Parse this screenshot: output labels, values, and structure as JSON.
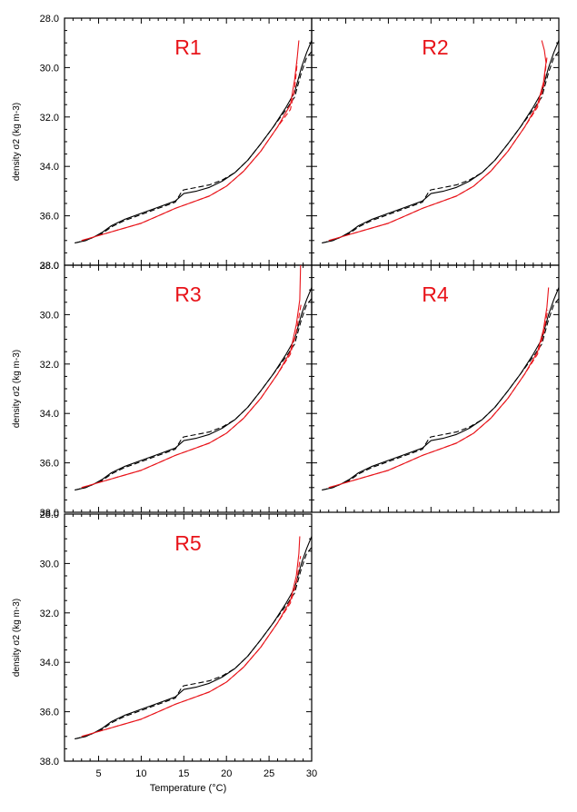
{
  "chart_data": {
    "type": "line",
    "layout": "3x2 panel grid, 5 panels",
    "xlabel": "Temperature (°C)",
    "ylabel": "density σ2 (kg m-3)",
    "xlim": [
      1,
      30
    ],
    "ylim": [
      38.0,
      28.0
    ],
    "y_inverted": true,
    "x_ticks": [
      5,
      10,
      15,
      20,
      25,
      30
    ],
    "x_tick_labels": [
      "5",
      "10",
      "15",
      "20",
      "25",
      "30"
    ],
    "y_ticks": [
      28,
      30,
      32,
      34,
      36,
      38
    ],
    "y_tick_labels": [
      "28.0",
      "30.0",
      "32.0",
      "34.0",
      "36.0",
      "38.0"
    ],
    "grid": false,
    "colors": {
      "reference": "#000000",
      "model": "#e8141a",
      "title": "#e8141a"
    },
    "panels": [
      {
        "title": "R1",
        "series": [
          {
            "color": "#000000",
            "dash": false,
            "x": [
              2.2,
              3.5,
              4.5,
              5.5,
              6.5,
              8,
              10,
              12,
              14,
              15,
              16.5,
              18,
              19.5,
              21,
              22.5,
              24,
              25.5,
              27,
              28,
              28.8,
              29.4,
              30
            ],
            "y": [
              37.1,
              37.0,
              36.85,
              36.65,
              36.4,
              36.15,
              35.9,
              35.65,
              35.4,
              35.1,
              35.0,
              34.85,
              34.6,
              34.25,
              33.75,
              33.1,
              32.4,
              31.6,
              31.0,
              30.0,
              29.4,
              28.9
            ]
          },
          {
            "color": "#000000",
            "dash": true,
            "x": [
              2.2,
              3.5,
              4.5,
              5.5,
              6.5,
              8,
              10,
              12,
              14,
              14.8,
              15,
              16.5,
              18,
              19.5,
              21,
              22.5,
              24,
              25.5,
              27,
              28,
              28.8,
              29.4,
              30
            ],
            "y": [
              37.1,
              37.0,
              36.85,
              36.7,
              36.45,
              36.2,
              35.95,
              35.7,
              35.45,
              35.0,
              34.95,
              34.85,
              34.75,
              34.55,
              34.25,
              33.75,
              33.1,
              32.4,
              31.7,
              31.2,
              30.2,
              29.6,
              29.35
            ]
          },
          {
            "color": "#e8141a",
            "dash": false,
            "x": [
              3,
              4,
              6,
              8,
              10,
              12,
              14,
              16,
              18,
              20,
              22,
              24,
              26,
              27.5,
              28,
              28.3,
              28.5
            ],
            "y": [
              37.0,
              36.9,
              36.7,
              36.5,
              36.3,
              36.0,
              35.7,
              35.45,
              35.2,
              34.8,
              34.2,
              33.4,
              32.4,
              31.5,
              30.5,
              29.6,
              28.9
            ]
          },
          {
            "color": "#e8141a",
            "dash": true,
            "x": [
              3,
              4,
              6,
              8,
              10,
              12,
              14,
              16,
              18,
              20,
              22,
              24,
              26,
              27.5,
              28,
              28.3
            ],
            "y": [
              37.0,
              36.9,
              36.7,
              36.5,
              36.3,
              36.0,
              35.7,
              35.45,
              35.2,
              34.8,
              34.2,
              33.4,
              32.4,
              31.7,
              30.9,
              29.8
            ]
          }
        ]
      },
      {
        "title": "R2",
        "series": [
          {
            "color": "#000000",
            "dash": false,
            "x": [
              2.2,
              3.5,
              4.5,
              5.5,
              6.5,
              8,
              10,
              12,
              14,
              15,
              16.5,
              18,
              19.5,
              21,
              22.5,
              24,
              25.5,
              27,
              28,
              28.8,
              29.4,
              30
            ],
            "y": [
              37.1,
              37.0,
              36.85,
              36.65,
              36.4,
              36.15,
              35.9,
              35.65,
              35.4,
              35.1,
              35.0,
              34.85,
              34.6,
              34.25,
              33.75,
              33.1,
              32.4,
              31.6,
              31.0,
              30.0,
              29.4,
              28.9
            ]
          },
          {
            "color": "#000000",
            "dash": true,
            "x": [
              2.2,
              3.5,
              4.5,
              5.5,
              6.5,
              8,
              10,
              12,
              14,
              14.8,
              15,
              16.5,
              18,
              19.5,
              21,
              22.5,
              24,
              25.5,
              27,
              28,
              28.8,
              29.4,
              30
            ],
            "y": [
              37.1,
              37.0,
              36.85,
              36.7,
              36.45,
              36.2,
              35.95,
              35.7,
              35.45,
              35.0,
              34.95,
              34.85,
              34.75,
              34.55,
              34.25,
              33.75,
              33.1,
              32.4,
              31.7,
              31.2,
              30.2,
              29.6,
              29.35
            ]
          },
          {
            "color": "#e8141a",
            "dash": false,
            "x": [
              3,
              4,
              6,
              8,
              10,
              12,
              14,
              16,
              18,
              20,
              22,
              24,
              26,
              27.5,
              28.2,
              28.5,
              28.3,
              28.0
            ],
            "y": [
              37.0,
              36.9,
              36.7,
              36.5,
              36.3,
              36.0,
              35.7,
              35.45,
              35.2,
              34.8,
              34.2,
              33.4,
              32.4,
              31.5,
              30.6,
              29.8,
              29.3,
              28.9
            ]
          },
          {
            "color": "#e8141a",
            "dash": true,
            "x": [
              3,
              4,
              6,
              8,
              10,
              12,
              14,
              16,
              18,
              20,
              22,
              24,
              26,
              27.5,
              28.2,
              28.6
            ],
            "y": [
              37.0,
              36.9,
              36.7,
              36.5,
              36.3,
              36.0,
              35.7,
              35.45,
              35.2,
              34.8,
              34.2,
              33.4,
              32.4,
              31.6,
              30.8,
              29.6
            ]
          }
        ]
      },
      {
        "title": "R3",
        "series": [
          {
            "color": "#000000",
            "dash": false,
            "x": [
              2.2,
              3.5,
              4.5,
              5.5,
              6.5,
              8,
              10,
              12,
              14,
              15,
              16.5,
              18,
              19.5,
              21,
              22.5,
              24,
              25.5,
              27,
              28,
              28.8,
              29.4,
              30
            ],
            "y": [
              37.1,
              37.0,
              36.85,
              36.65,
              36.4,
              36.15,
              35.9,
              35.65,
              35.4,
              35.1,
              35.0,
              34.85,
              34.6,
              34.25,
              33.75,
              33.1,
              32.4,
              31.6,
              31.0,
              30.0,
              29.4,
              28.9
            ]
          },
          {
            "color": "#000000",
            "dash": true,
            "x": [
              2.2,
              3.5,
              4.5,
              5.5,
              6.5,
              8,
              10,
              12,
              14,
              14.8,
              15,
              16.5,
              18,
              19.5,
              21,
              22.5,
              24,
              25.5,
              27,
              28,
              28.8,
              29.4,
              30
            ],
            "y": [
              37.1,
              37.0,
              36.85,
              36.7,
              36.45,
              36.2,
              35.95,
              35.7,
              35.45,
              35.0,
              34.95,
              34.85,
              34.75,
              34.55,
              34.25,
              33.75,
              33.1,
              32.4,
              31.7,
              31.2,
              30.2,
              29.6,
              29.35
            ]
          },
          {
            "color": "#e8141a",
            "dash": false,
            "x": [
              3,
              4,
              6,
              8,
              10,
              12,
              14,
              16,
              18,
              20,
              22,
              24,
              26,
              27.5,
              28.2,
              28.6,
              28.7
            ],
            "y": [
              37.0,
              36.9,
              36.7,
              36.5,
              36.3,
              36.0,
              35.7,
              35.45,
              35.2,
              34.8,
              34.2,
              33.4,
              32.4,
              31.5,
              30.4,
              29.4,
              28.0
            ]
          },
          {
            "color": "#e8141a",
            "dash": true,
            "x": [
              3,
              4,
              6,
              8,
              10,
              12,
              14,
              16,
              18,
              20,
              22,
              24,
              26,
              27.5,
              28.2,
              28.8
            ],
            "y": [
              37.0,
              36.9,
              36.7,
              36.5,
              36.3,
              36.0,
              35.7,
              35.45,
              35.2,
              34.8,
              34.2,
              33.4,
              32.4,
              31.6,
              30.7,
              29.5
            ]
          }
        ]
      },
      {
        "title": "R4",
        "series": [
          {
            "color": "#000000",
            "dash": false,
            "x": [
              2.2,
              3.5,
              4.5,
              5.5,
              6.5,
              8,
              10,
              12,
              14,
              15,
              16.5,
              18,
              19.5,
              21,
              22.5,
              24,
              25.5,
              27,
              28,
              28.8,
              29.4,
              30
            ],
            "y": [
              37.1,
              37.0,
              36.85,
              36.65,
              36.4,
              36.15,
              35.9,
              35.65,
              35.4,
              35.1,
              35.0,
              34.85,
              34.6,
              34.25,
              33.75,
              33.1,
              32.4,
              31.6,
              31.0,
              30.0,
              29.4,
              28.9
            ]
          },
          {
            "color": "#000000",
            "dash": true,
            "x": [
              2.2,
              3.5,
              4.5,
              5.5,
              6.5,
              8,
              10,
              12,
              14,
              14.8,
              15,
              16.5,
              18,
              19.5,
              21,
              22.5,
              24,
              25.5,
              27,
              28,
              28.8,
              29.4,
              30
            ],
            "y": [
              37.1,
              37.0,
              36.85,
              36.7,
              36.45,
              36.2,
              35.95,
              35.7,
              35.45,
              35.0,
              34.95,
              34.85,
              34.75,
              34.55,
              34.25,
              33.75,
              33.1,
              32.4,
              31.7,
              31.2,
              30.2,
              29.6,
              29.35
            ]
          },
          {
            "color": "#e8141a",
            "dash": false,
            "x": [
              3,
              4,
              6,
              8,
              10,
              12,
              14,
              16,
              18,
              20,
              22,
              24,
              26,
              27.5,
              28.2,
              28.6,
              28.8
            ],
            "y": [
              37.0,
              36.9,
              36.7,
              36.5,
              36.3,
              36.0,
              35.7,
              35.45,
              35.2,
              34.8,
              34.2,
              33.4,
              32.4,
              31.5,
              30.6,
              29.7,
              28.9
            ]
          },
          {
            "color": "#e8141a",
            "dash": true,
            "x": [
              3,
              4,
              6,
              8,
              10,
              12,
              14,
              16,
              18,
              20,
              22,
              24,
              26,
              27.5,
              28.2,
              28.7
            ],
            "y": [
              37.0,
              36.9,
              36.7,
              36.5,
              36.3,
              36.0,
              35.7,
              35.45,
              35.2,
              34.8,
              34.2,
              33.4,
              32.4,
              31.6,
              30.8,
              29.8
            ]
          }
        ]
      },
      {
        "title": "R5",
        "series": [
          {
            "color": "#000000",
            "dash": false,
            "x": [
              2.2,
              3.5,
              4.5,
              5.5,
              6.5,
              8,
              10,
              12,
              14,
              15,
              16.5,
              18,
              19.5,
              21,
              22.5,
              24,
              25.5,
              27,
              28,
              28.8,
              29.4,
              30
            ],
            "y": [
              37.1,
              37.0,
              36.85,
              36.65,
              36.4,
              36.15,
              35.9,
              35.65,
              35.4,
              35.1,
              35.0,
              34.85,
              34.6,
              34.25,
              33.75,
              33.1,
              32.4,
              31.6,
              31.0,
              30.0,
              29.4,
              28.9
            ]
          },
          {
            "color": "#000000",
            "dash": true,
            "x": [
              2.2,
              3.5,
              4.5,
              5.5,
              6.5,
              8,
              10,
              12,
              14,
              14.8,
              15,
              16.5,
              18,
              19.5,
              21,
              22.5,
              24,
              25.5,
              27,
              28,
              28.8,
              29.4,
              30
            ],
            "y": [
              37.1,
              37.0,
              36.85,
              36.7,
              36.45,
              36.2,
              35.95,
              35.7,
              35.45,
              35.0,
              34.95,
              34.85,
              34.75,
              34.55,
              34.25,
              33.75,
              33.1,
              32.4,
              31.7,
              31.2,
              30.2,
              29.6,
              29.35
            ]
          },
          {
            "color": "#e8141a",
            "dash": false,
            "x": [
              3,
              4,
              6,
              8,
              10,
              12,
              14,
              16,
              18,
              20,
              22,
              24,
              26,
              27.5,
              28.2,
              28.5,
              28.6
            ],
            "y": [
              37.0,
              36.9,
              36.7,
              36.5,
              36.3,
              36.0,
              35.7,
              35.45,
              35.2,
              34.8,
              34.2,
              33.4,
              32.4,
              31.5,
              30.5,
              29.6,
              28.9
            ]
          },
          {
            "color": "#e8141a",
            "dash": true,
            "x": [
              3,
              4,
              6,
              8,
              10,
              12,
              14,
              16,
              18,
              20,
              22,
              24,
              26,
              27.5,
              28.2,
              28.7
            ],
            "y": [
              37.0,
              36.9,
              36.7,
              36.5,
              36.3,
              36.0,
              35.7,
              35.45,
              35.2,
              34.8,
              34.2,
              33.4,
              32.4,
              31.6,
              30.8,
              29.7
            ]
          }
        ]
      }
    ]
  }
}
